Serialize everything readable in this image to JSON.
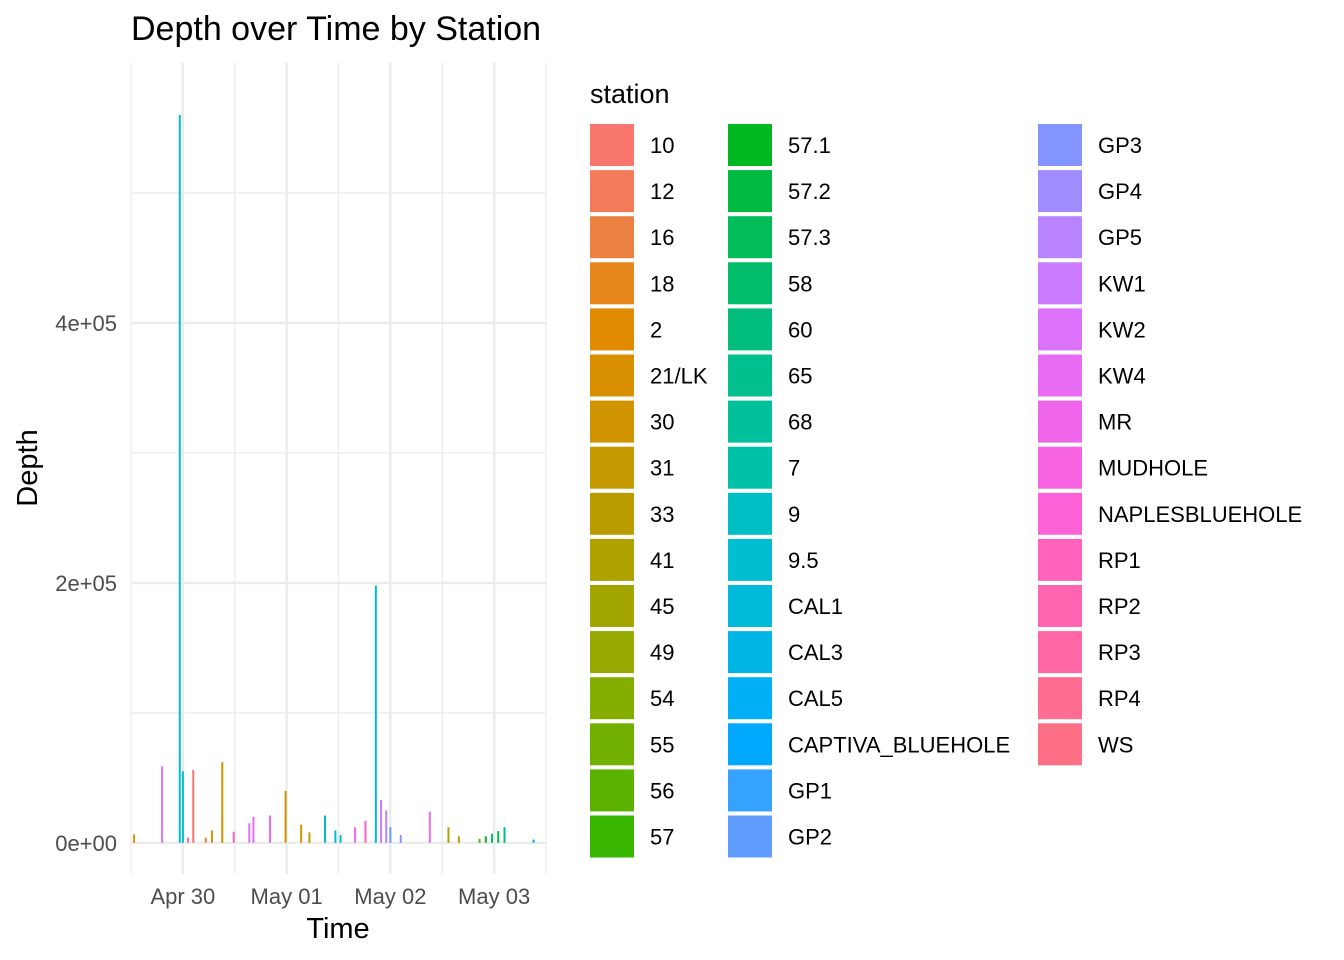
{
  "chart_data": {
    "type": "bar",
    "title": "Depth over Time by Station",
    "xlabel": "Time",
    "ylabel": "Depth",
    "x_ticks": [
      {
        "label": "Apr 30",
        "day": 0.0
      },
      {
        "label": "May 01",
        "day": 1.0
      },
      {
        "label": "May 02",
        "day": 2.0
      },
      {
        "label": "May 03",
        "day": 3.0
      }
    ],
    "x_range_days": [
      -0.5,
      3.5
    ],
    "y_ticks": [
      {
        "label": "0e+00",
        "value": 0
      },
      {
        "label": "2e+05",
        "value": 200000
      },
      {
        "label": "4e+05",
        "value": 400000
      }
    ],
    "ylim": [
      -24000,
      600000
    ],
    "grid": true,
    "legend_title": "station",
    "legend_position": "right",
    "stations": [
      {
        "name": "10",
        "color": "#F8766D"
      },
      {
        "name": "12",
        "color": "#F37B59"
      },
      {
        "name": "16",
        "color": "#ED8141"
      },
      {
        "name": "18",
        "color": "#E7861B"
      },
      {
        "name": "2",
        "color": "#E08B00"
      },
      {
        "name": "21/LK",
        "color": "#D89000"
      },
      {
        "name": "30",
        "color": "#CF9400"
      },
      {
        "name": "31",
        "color": "#C59900"
      },
      {
        "name": "33",
        "color": "#BB9D00"
      },
      {
        "name": "41",
        "color": "#AFA100"
      },
      {
        "name": "45",
        "color": "#A3A500"
      },
      {
        "name": "49",
        "color": "#95A900"
      },
      {
        "name": "54",
        "color": "#85AD00"
      },
      {
        "name": "55",
        "color": "#72B000"
      },
      {
        "name": "56",
        "color": "#5BB300"
      },
      {
        "name": "57",
        "color": "#39B600"
      },
      {
        "name": "57.1",
        "color": "#00B81F"
      },
      {
        "name": "57.2",
        "color": "#00BA42"
      },
      {
        "name": "57.3",
        "color": "#00BC59"
      },
      {
        "name": "58",
        "color": "#00BE6C"
      },
      {
        "name": "60",
        "color": "#00BF7D"
      },
      {
        "name": "65",
        "color": "#00C08D"
      },
      {
        "name": "68",
        "color": "#00C19C"
      },
      {
        "name": "7",
        "color": "#00C1AA"
      },
      {
        "name": "9",
        "color": "#00BFC4"
      },
      {
        "name": "9.5",
        "color": "#00BDD0"
      },
      {
        "name": "CAL1",
        "color": "#00BADB"
      },
      {
        "name": "CAL3",
        "color": "#00B6E6"
      },
      {
        "name": "CAL5",
        "color": "#00B0F6"
      },
      {
        "name": "CAPTIVA_BLUEHOLE",
        "color": "#00A9FF"
      },
      {
        "name": "GP1",
        "color": "#35A2FF"
      },
      {
        "name": "GP2",
        "color": "#619CFF"
      },
      {
        "name": "GP3",
        "color": "#8494FF"
      },
      {
        "name": "GP4",
        "color": "#A18CFF"
      },
      {
        "name": "GP5",
        "color": "#B983FF"
      },
      {
        "name": "KW1",
        "color": "#CC7AFF"
      },
      {
        "name": "KW2",
        "color": "#DC71FA"
      },
      {
        "name": "KW4",
        "color": "#E76BF3"
      },
      {
        "name": "MR",
        "color": "#F066EA"
      },
      {
        "name": "MUDHOLE",
        "color": "#F763E0"
      },
      {
        "name": "NAPLESBLUEHOLE",
        "color": "#FC61D5"
      },
      {
        "name": "RP1",
        "color": "#FF62BC"
      },
      {
        "name": "RP2",
        "color": "#FF64B0"
      },
      {
        "name": "RP3",
        "color": "#FF67A4"
      },
      {
        "name": "RP4",
        "color": "#FF6C91"
      },
      {
        "name": "WS",
        "color": "#FD6F85"
      }
    ],
    "bars": [
      {
        "day": -0.47,
        "value": 6500,
        "station": "21/LK"
      },
      {
        "day": -0.2,
        "value": 59000,
        "station": "KW2"
      },
      {
        "day": -0.03,
        "value": 560000,
        "station": "9"
      },
      {
        "day": 0.0,
        "value": 55000,
        "station": "9.5"
      },
      {
        "day": 0.05,
        "value": 4000,
        "station": "RP3"
      },
      {
        "day": 0.1,
        "value": 56000,
        "station": "10"
      },
      {
        "day": 0.22,
        "value": 4000,
        "station": "16"
      },
      {
        "day": 0.28,
        "value": 9500,
        "station": "30"
      },
      {
        "day": 0.38,
        "value": 62000,
        "station": "30"
      },
      {
        "day": 0.49,
        "value": 8500,
        "station": "RP1"
      },
      {
        "day": 0.64,
        "value": 15000,
        "station": "KW2"
      },
      {
        "day": 0.68,
        "value": 20000,
        "station": "KW4"
      },
      {
        "day": 0.84,
        "value": 21000,
        "station": "KW4"
      },
      {
        "day": 0.99,
        "value": 40000,
        "station": "30"
      },
      {
        "day": 1.14,
        "value": 14000,
        "station": "30"
      },
      {
        "day": 1.22,
        "value": 8000,
        "station": "31"
      },
      {
        "day": 1.37,
        "value": 21000,
        "station": "9"
      },
      {
        "day": 1.47,
        "value": 9500,
        "station": "CAL1"
      },
      {
        "day": 1.52,
        "value": 6000,
        "station": "9.5"
      },
      {
        "day": 1.66,
        "value": 12000,
        "station": "KW4"
      },
      {
        "day": 1.76,
        "value": 17000,
        "station": "RP1"
      },
      {
        "day": 1.86,
        "value": 198000,
        "station": "CAL3"
      },
      {
        "day": 1.91,
        "value": 33000,
        "station": "KW1"
      },
      {
        "day": 1.96,
        "value": 25000,
        "station": "GP5"
      },
      {
        "day": 2.0,
        "value": 12000,
        "station": "GP2"
      },
      {
        "day": 2.1,
        "value": 6000,
        "station": "GP3"
      },
      {
        "day": 2.38,
        "value": 24000,
        "station": "KW4"
      },
      {
        "day": 2.56,
        "value": 12000,
        "station": "33"
      },
      {
        "day": 2.66,
        "value": 5000,
        "station": "41"
      },
      {
        "day": 2.86,
        "value": 3000,
        "station": "56"
      },
      {
        "day": 2.92,
        "value": 5000,
        "station": "57.1"
      },
      {
        "day": 2.98,
        "value": 7000,
        "station": "58"
      },
      {
        "day": 3.04,
        "value": 9000,
        "station": "57.2"
      },
      {
        "day": 3.1,
        "value": 12000,
        "station": "60"
      },
      {
        "day": 3.38,
        "value": 2500,
        "station": "CAL5"
      }
    ]
  }
}
